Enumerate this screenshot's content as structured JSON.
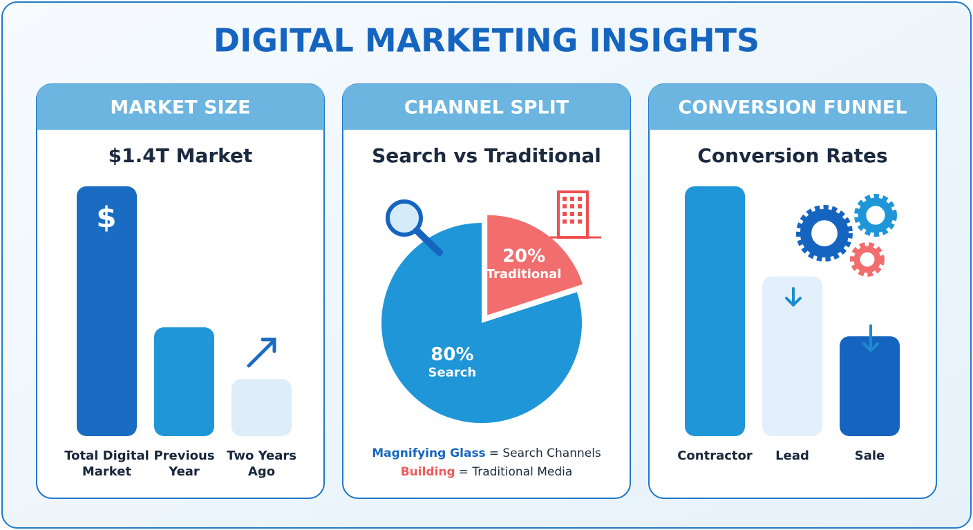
{
  "title": "DIGITAL MARKETING INSIGHTS",
  "chart_data": [
    {
      "type": "bar",
      "header": "MARKET SIZE",
      "title": "$1.4T Market",
      "icon": "$",
      "categories": [
        "Total Digital Market",
        "Previous Year",
        "Two Years Ago"
      ],
      "values": [
        1.4,
        0.61,
        0.32
      ],
      "colors": [
        "#1a6cc2",
        "#2196d6",
        "#ddedf9"
      ],
      "ylim": [
        0,
        1.4
      ]
    },
    {
      "type": "pie",
      "header": "CHANNEL SPLIT",
      "title": "Search vs Traditional",
      "categories": [
        "Search",
        "Traditional"
      ],
      "values": [
        80,
        20
      ],
      "value_labels": [
        "80%",
        "20%"
      ],
      "colors": [
        "#1e96d8",
        "#f26d6d"
      ],
      "legend": [
        {
          "key": "Magnifying Glass",
          "text": "= Search Channels"
        },
        {
          "key": "Building",
          "text": "= Traditional Media"
        }
      ]
    },
    {
      "type": "bar",
      "header": "CONVERSION FUNNEL",
      "title": "Conversion Rates",
      "categories": [
        "Contractor",
        "Lead",
        "Sale"
      ],
      "values": [
        100,
        64,
        40
      ],
      "colors": [
        "#1e96d8",
        "#e3f0fb",
        "#1565c0"
      ],
      "ylim": [
        0,
        100
      ]
    }
  ]
}
